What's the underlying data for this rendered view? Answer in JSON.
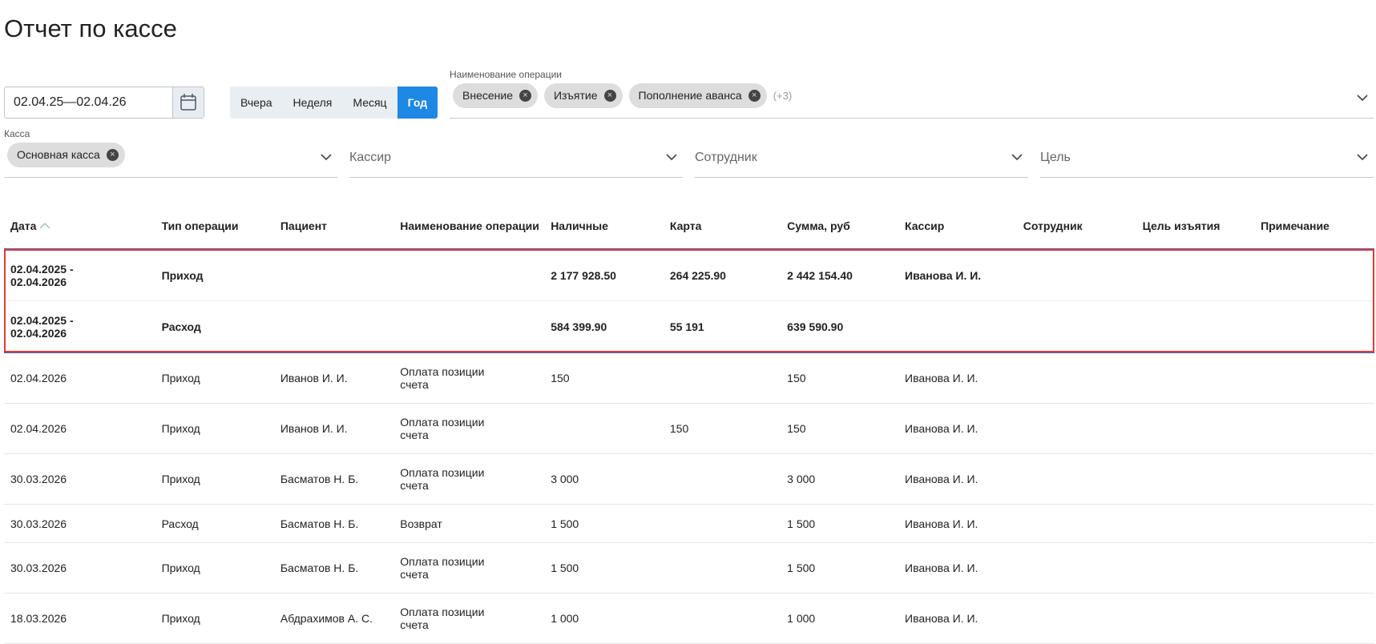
{
  "header": {
    "title": "Отчет по кассе"
  },
  "filters": {
    "date_range": "02.04.25—02.04.26",
    "period_buttons": [
      {
        "label": "Вчера"
      },
      {
        "label": "Неделя"
      },
      {
        "label": "Месяц"
      },
      {
        "label": "Год",
        "active": true
      }
    ],
    "operation": {
      "label": "Наименование операции",
      "chips": [
        "Внесение",
        "Изъятие",
        "Пополнение аванса"
      ],
      "more": "(+3)"
    },
    "kassa": {
      "label": "Касса",
      "chips": [
        "Основная касса"
      ]
    },
    "placeholders": [
      "Кассир",
      "Сотрудник",
      "Цель"
    ]
  },
  "table": {
    "columns": [
      "Дата",
      "Тип операции",
      "Пациент",
      "Наименование операции",
      "Наличные",
      "Карта",
      "Сумма, руб",
      "Кассир",
      "Сотрудник",
      "Цель изъятия",
      "Примечание"
    ],
    "summary_rows": [
      [
        "02.04.2025 - 02.04.2026",
        "Приход",
        null,
        null,
        "2 177 928.50",
        "264 225.90",
        "2 442 154.40",
        "Иванова И. И.",
        null,
        null,
        null
      ],
      [
        "02.04.2025 - 02.04.2026",
        "Расход",
        null,
        null,
        "584 399.90",
        "55 191",
        "639 590.90",
        null,
        null,
        null,
        null
      ]
    ],
    "rows": [
      [
        "02.04.2026",
        "Приход",
        "Иванов И. И.",
        "Оплата позиции счета",
        "150",
        null,
        "150",
        "Иванова И. И.",
        null,
        null,
        null
      ],
      [
        "02.04.2026",
        "Приход",
        "Иванов И. И.",
        "Оплата позиции счета",
        null,
        "150",
        "150",
        "Иванова И. И.",
        null,
        null,
        null
      ],
      [
        "30.03.2026",
        "Приход",
        "Басматов Н. Б.",
        "Оплата позиции счета",
        "3 000",
        null,
        "3 000",
        "Иванова И. И.",
        null,
        null,
        null
      ],
      [
        "30.03.2026",
        "Расход",
        "Басматов Н. Б.",
        "Возврат",
        "1 500",
        null,
        "1 500",
        "Иванова И. И.",
        null,
        null,
        null
      ],
      [
        "30.03.2026",
        "Приход",
        "Басматов Н. Б.",
        "Оплата позиции счета",
        "1 500",
        null,
        "1 500",
        "Иванова И. И.",
        null,
        null,
        null
      ],
      [
        "18.03.2026",
        "Приход",
        "Абдрахимов А. С.",
        "Оплата позиции счета",
        "1 000",
        null,
        "1 000",
        "Иванова И. И.",
        null,
        null,
        null
      ]
    ]
  }
}
